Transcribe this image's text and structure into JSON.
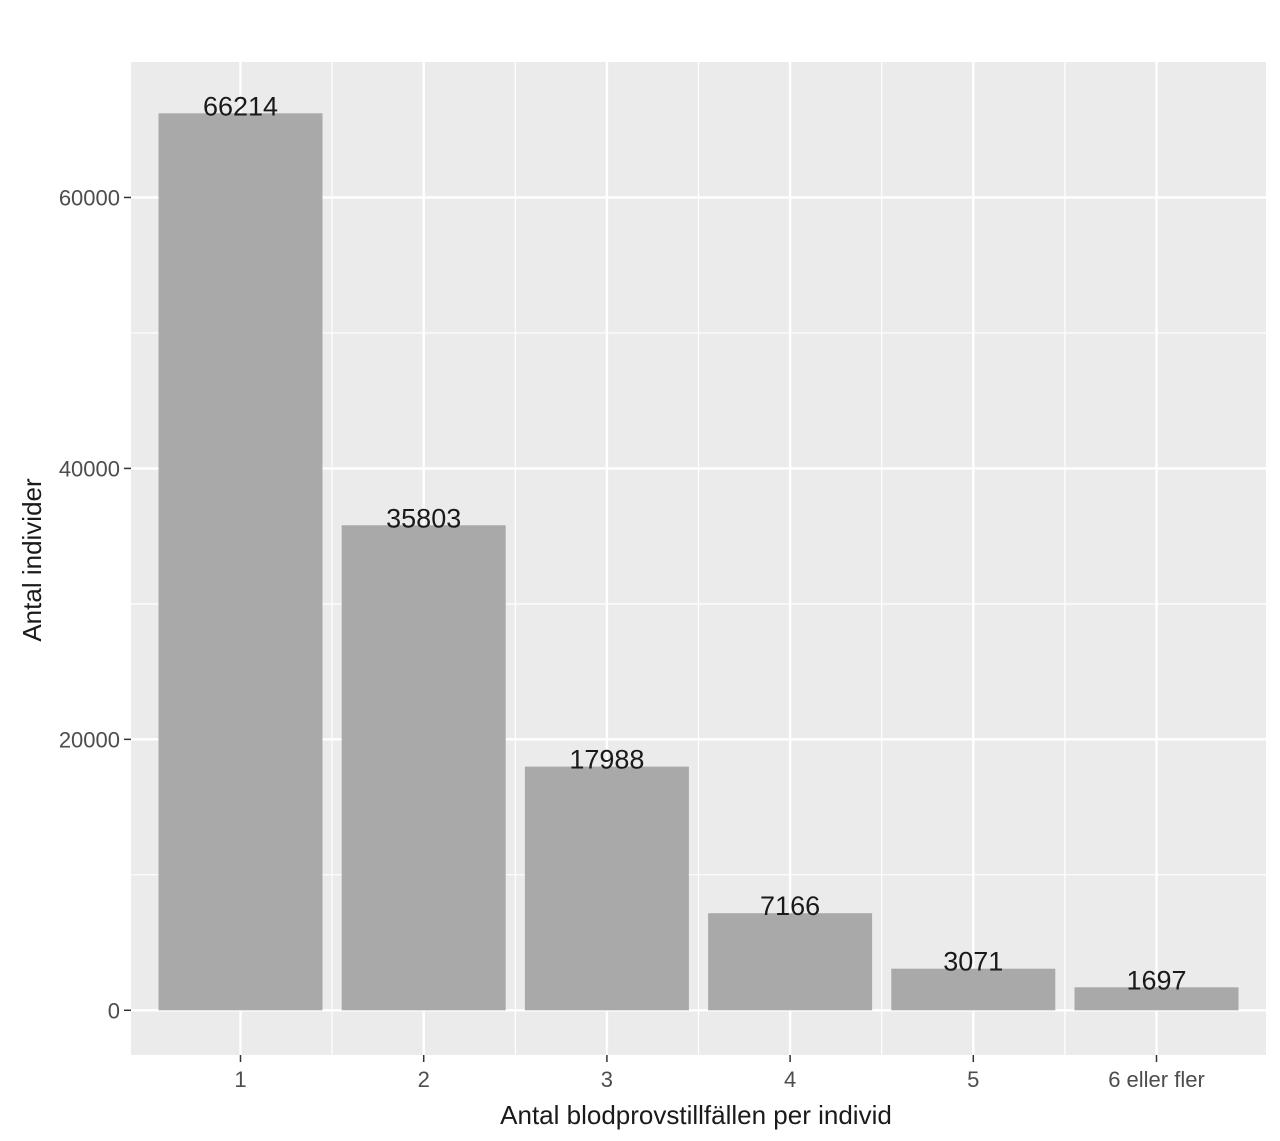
{
  "chart_data": {
    "type": "bar",
    "categories": [
      "1",
      "2",
      "3",
      "4",
      "5",
      "6 eller fler"
    ],
    "values": [
      66214,
      35803,
      17988,
      7166,
      3071,
      1697
    ],
    "data_labels": [
      "66214",
      "35803",
      "17988",
      "7166",
      "3071",
      "1697"
    ],
    "title": "",
    "xlabel": "Antal blodprovstillfällen per individ",
    "ylabel": "Antal individer",
    "ylim": [
      -3300,
      70000
    ],
    "y_ticks": [
      0,
      20000,
      40000,
      60000
    ],
    "y_tick_labels": [
      "0",
      "20000",
      "40000",
      "60000"
    ],
    "grid": true,
    "legend": "none",
    "colors": {
      "panel_background": "#ebebeb",
      "grid": "#ffffff",
      "bar_fill": "#a9a9a9"
    }
  }
}
